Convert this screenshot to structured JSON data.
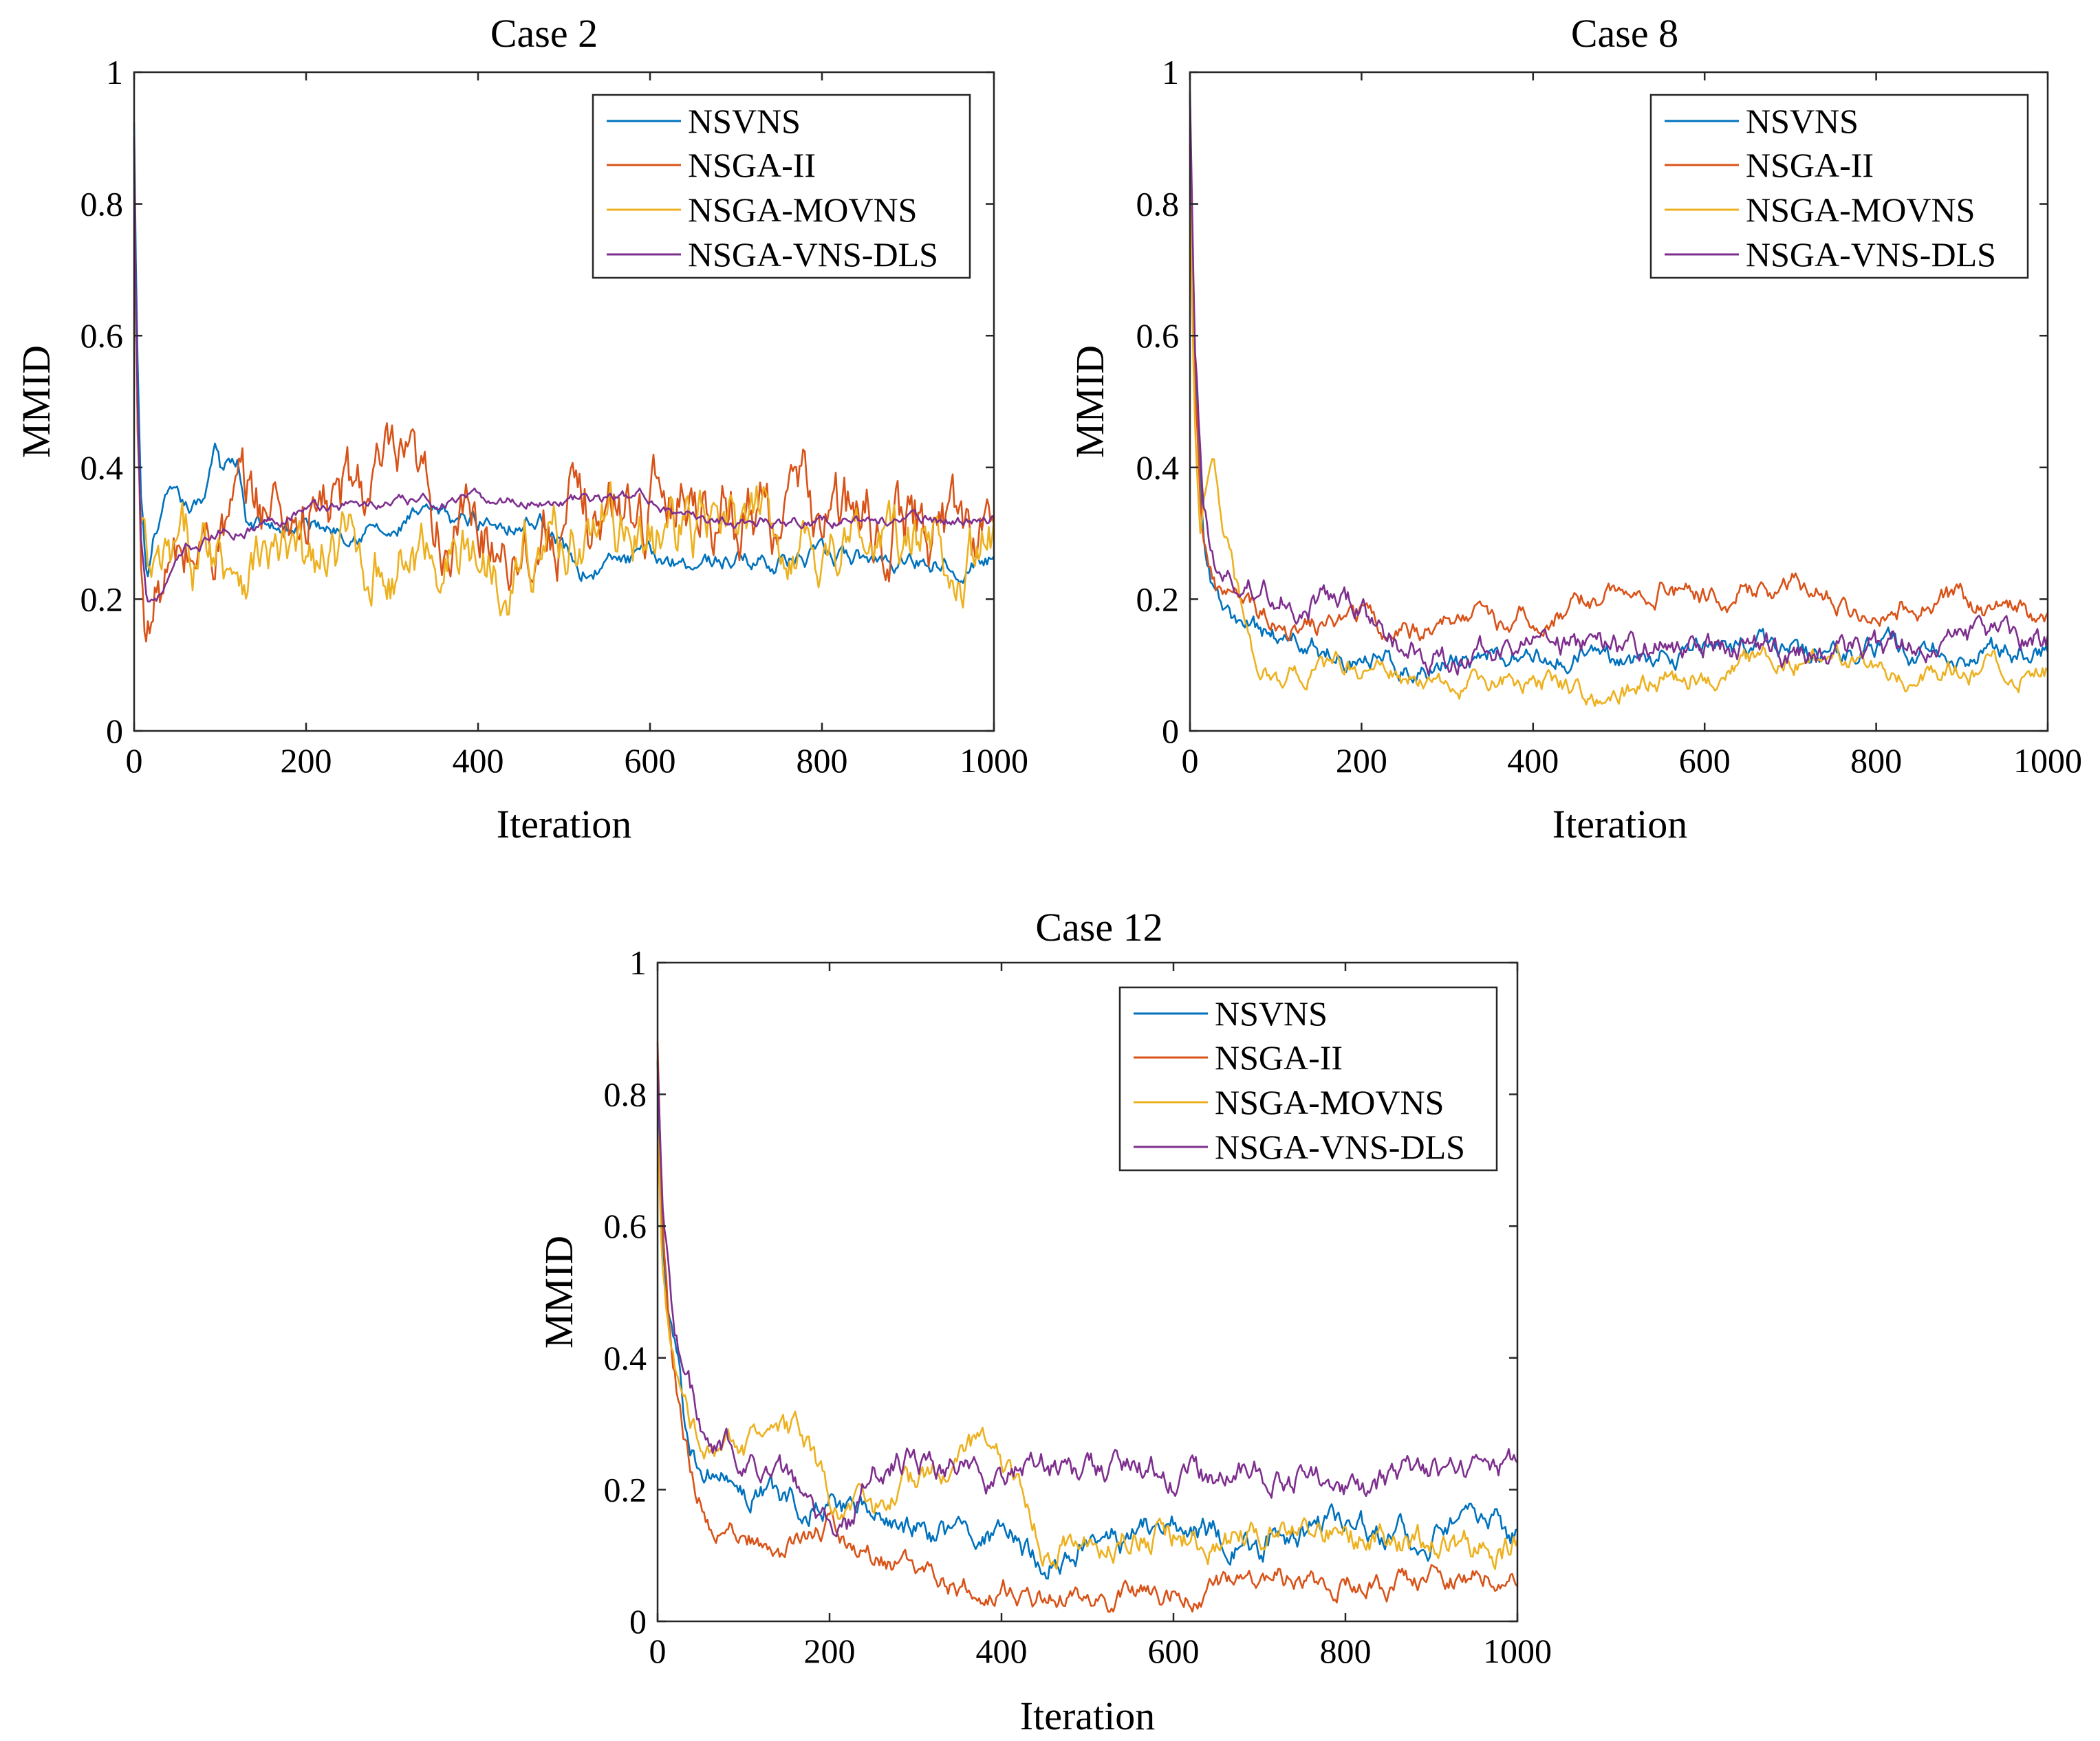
{
  "colors": {
    "NSVNS": "#0072BD",
    "NSGA-II": "#D95319",
    "NSGA-MOVNS": "#EDB120",
    "NSGA-VNS-DLS": "#7E2F8E"
  },
  "chart_data": [
    {
      "type": "line",
      "title": "Case 2",
      "xlabel": "Iteration",
      "ylabel": "MMID",
      "xlim": [
        0,
        1000
      ],
      "ylim": [
        0,
        1
      ],
      "xticks": [
        "0",
        "200",
        "400",
        "600",
        "800",
        "1000"
      ],
      "yticks": [
        "0",
        "0.2",
        "0.4",
        "0.6",
        "0.8",
        "1"
      ],
      "legend": [
        "NSVNS",
        "NSGA-II",
        "NSGA-MOVNS",
        "NSGA-VNS-DLS"
      ],
      "legend_position": "top-right",
      "series": [
        {
          "name": "NSVNS",
          "x": [
            0,
            3,
            8,
            15,
            25,
            40,
            60,
            80,
            95,
            100,
            120,
            130,
            200,
            280,
            300,
            320,
            400,
            480,
            500,
            520,
            540,
            560,
            600,
            700,
            800,
            900,
            1000
          ],
          "values": [
            0.92,
            0.6,
            0.35,
            0.22,
            0.3,
            0.35,
            0.33,
            0.34,
            0.45,
            0.41,
            0.41,
            0.31,
            0.31,
            0.31,
            0.29,
            0.32,
            0.32,
            0.32,
            0.28,
            0.24,
            0.25,
            0.255,
            0.26,
            0.26,
            0.26,
            0.26,
            0.26
          ],
          "noise": 0.01
        },
        {
          "name": "NSGA-II",
          "x": [
            0,
            3,
            8,
            15,
            30,
            60,
            100,
            150,
            200,
            250,
            280,
            300,
            330,
            360,
            400,
            450,
            500,
            550,
            600,
            640,
            660,
            700,
            750,
            800,
            850,
            900,
            1000
          ],
          "values": [
            0.88,
            0.5,
            0.25,
            0.16,
            0.22,
            0.25,
            0.31,
            0.34,
            0.33,
            0.35,
            0.37,
            0.38,
            0.34,
            0.31,
            0.3,
            0.3,
            0.31,
            0.33,
            0.35,
            0.37,
            0.36,
            0.34,
            0.34,
            0.33,
            0.31,
            0.31,
            0.31
          ],
          "noise": 0.04
        },
        {
          "name": "NSGA-MOVNS",
          "x": [
            0,
            3,
            8,
            20,
            40,
            60,
            100,
            150,
            200,
            250,
            300,
            330,
            360,
            400,
            450,
            500,
            550,
            600,
            650,
            700,
            750,
            800,
            850,
            900,
            1000
          ],
          "values": [
            0.85,
            0.5,
            0.28,
            0.2,
            0.23,
            0.26,
            0.28,
            0.27,
            0.24,
            0.27,
            0.25,
            0.26,
            0.28,
            0.26,
            0.27,
            0.3,
            0.31,
            0.3,
            0.31,
            0.29,
            0.3,
            0.29,
            0.29,
            0.28,
            0.28
          ],
          "noise": 0.035
        },
        {
          "name": "NSGA-VNS-DLS",
          "x": [
            0,
            3,
            8,
            15,
            30,
            60,
            100,
            140,
            180,
            200,
            300,
            400,
            500,
            600,
            620,
            630,
            700,
            800,
            850,
            900,
            1000
          ],
          "values": [
            0.9,
            0.55,
            0.3,
            0.2,
            0.21,
            0.27,
            0.3,
            0.31,
            0.33,
            0.34,
            0.345,
            0.35,
            0.35,
            0.355,
            0.34,
            0.32,
            0.32,
            0.32,
            0.32,
            0.32,
            0.32
          ],
          "noise": 0.006
        }
      ]
    },
    {
      "type": "line",
      "title": "Case 8",
      "xlabel": "Iteration",
      "ylabel": "MMID",
      "xlim": [
        0,
        1000
      ],
      "ylim": [
        0,
        1
      ],
      "xticks": [
        "0",
        "200",
        "400",
        "600",
        "800",
        "1000"
      ],
      "yticks": [
        "0",
        "0.2",
        "0.4",
        "0.6",
        "0.8",
        "1"
      ],
      "legend": [
        "NSVNS",
        "NSGA-II",
        "NSGA-MOVNS",
        "NSGA-VNS-DLS"
      ],
      "legend_position": "top-right",
      "series": [
        {
          "name": "NSVNS",
          "x": [
            0,
            5,
            15,
            30,
            50,
            80,
            120,
            160,
            200,
            250,
            300,
            350,
            400,
            450,
            500,
            550,
            600,
            650,
            700,
            750,
            800,
            850,
            900,
            950,
            1000
          ],
          "values": [
            0.97,
            0.6,
            0.3,
            0.2,
            0.16,
            0.15,
            0.14,
            0.12,
            0.11,
            0.1,
            0.1,
            0.11,
            0.11,
            0.115,
            0.11,
            0.12,
            0.12,
            0.125,
            0.12,
            0.12,
            0.13,
            0.12,
            0.12,
            0.12,
            0.125
          ],
          "noise": 0.012
        },
        {
          "name": "NSGA-II",
          "x": [
            0,
            5,
            15,
            30,
            50,
            80,
            120,
            160,
            200,
            250,
            300,
            340,
            360,
            400,
            450,
            500,
            550,
            600,
            650,
            700,
            750,
            800,
            850,
            900,
            950,
            1000
          ],
          "values": [
            0.9,
            0.55,
            0.3,
            0.22,
            0.2,
            0.18,
            0.16,
            0.16,
            0.17,
            0.15,
            0.16,
            0.2,
            0.17,
            0.17,
            0.19,
            0.21,
            0.22,
            0.2,
            0.21,
            0.23,
            0.2,
            0.19,
            0.19,
            0.2,
            0.18,
            0.17
          ],
          "noise": 0.012
        },
        {
          "name": "NSGA-MOVNS",
          "x": [
            0,
            5,
            12,
            20,
            28,
            40,
            60,
            80,
            100,
            150,
            200,
            250,
            300,
            350,
            400,
            450,
            500,
            550,
            600,
            650,
            700,
            750,
            800,
            850,
            900,
            950,
            1000
          ],
          "values": [
            0.85,
            0.5,
            0.3,
            0.38,
            0.42,
            0.3,
            0.18,
            0.1,
            0.08,
            0.09,
            0.1,
            0.08,
            0.06,
            0.07,
            0.08,
            0.07,
            0.05,
            0.08,
            0.09,
            0.1,
            0.11,
            0.1,
            0.09,
            0.09,
            0.1,
            0.09,
            0.09
          ],
          "noise": 0.012
        },
        {
          "name": "NSGA-VNS-DLS",
          "x": [
            0,
            5,
            15,
            30,
            50,
            80,
            120,
            160,
            200,
            250,
            300,
            350,
            400,
            450,
            500,
            550,
            600,
            650,
            700,
            750,
            800,
            850,
            900,
            950,
            1000
          ],
          "values": [
            0.98,
            0.6,
            0.35,
            0.25,
            0.22,
            0.22,
            0.2,
            0.2,
            0.18,
            0.12,
            0.11,
            0.12,
            0.13,
            0.13,
            0.12,
            0.13,
            0.13,
            0.13,
            0.12,
            0.12,
            0.12,
            0.13,
            0.14,
            0.14,
            0.14
          ],
          "noise": 0.014
        }
      ]
    },
    {
      "type": "line",
      "title": "Case 12",
      "xlabel": "Iteration",
      "ylabel": "MMID",
      "xlim": [
        0,
        1000
      ],
      "ylim": [
        0,
        1
      ],
      "xticks": [
        "0",
        "200",
        "400",
        "600",
        "800",
        "1000"
      ],
      "yticks": [
        "0",
        "0.2",
        "0.4",
        "0.6",
        "0.8",
        "1"
      ],
      "legend": [
        "NSVNS",
        "NSGA-II",
        "NSGA-MOVNS",
        "NSGA-VNS-DLS"
      ],
      "legend_position": "top-right",
      "series": [
        {
          "name": "NSVNS",
          "x": [
            0,
            5,
            15,
            30,
            50,
            70,
            100,
            150,
            200,
            250,
            300,
            350,
            400,
            450,
            500,
            550,
            600,
            650,
            700,
            750,
            800,
            850,
            900,
            950,
            1000
          ],
          "values": [
            0.85,
            0.6,
            0.45,
            0.32,
            0.24,
            0.22,
            0.2,
            0.19,
            0.18,
            0.16,
            0.14,
            0.12,
            0.12,
            0.1,
            0.12,
            0.13,
            0.14,
            0.13,
            0.12,
            0.14,
            0.15,
            0.13,
            0.13,
            0.14,
            0.13
          ],
          "noise": 0.015
        },
        {
          "name": "NSGA-II",
          "x": [
            0,
            5,
            15,
            30,
            45,
            60,
            80,
            100,
            140,
            180,
            200,
            250,
            300,
            350,
            400,
            450,
            500,
            550,
            600,
            650,
            700,
            750,
            800,
            850,
            900,
            950,
            1000
          ],
          "values": [
            0.88,
            0.6,
            0.42,
            0.28,
            0.2,
            0.15,
            0.13,
            0.14,
            0.1,
            0.12,
            0.15,
            0.1,
            0.07,
            0.05,
            0.05,
            0.04,
            0.03,
            0.04,
            0.04,
            0.05,
            0.07,
            0.06,
            0.06,
            0.05,
            0.07,
            0.07,
            0.08
          ],
          "noise": 0.012
        },
        {
          "name": "NSGA-MOVNS",
          "x": [
            0,
            5,
            15,
            30,
            50,
            70,
            100,
            130,
            160,
            200,
            250,
            300,
            350,
            380,
            420,
            450,
            500,
            550,
            600,
            650,
            700,
            750,
            800,
            850,
            900,
            950,
            1000
          ],
          "values": [
            0.75,
            0.55,
            0.4,
            0.35,
            0.28,
            0.27,
            0.26,
            0.27,
            0.28,
            0.2,
            0.15,
            0.2,
            0.26,
            0.27,
            0.22,
            0.12,
            0.12,
            0.13,
            0.13,
            0.12,
            0.14,
            0.15,
            0.14,
            0.12,
            0.12,
            0.11,
            0.11
          ],
          "noise": 0.015
        },
        {
          "name": "NSGA-VNS-DLS",
          "x": [
            0,
            5,
            15,
            30,
            50,
            70,
            100,
            150,
            200,
            220,
            250,
            280,
            300,
            350,
            400,
            450,
            500,
            550,
            600,
            650,
            700,
            750,
            800,
            850,
            900,
            950,
            1000
          ],
          "values": [
            0.85,
            0.65,
            0.5,
            0.38,
            0.3,
            0.27,
            0.25,
            0.22,
            0.15,
            0.15,
            0.22,
            0.25,
            0.24,
            0.23,
            0.21,
            0.23,
            0.22,
            0.24,
            0.22,
            0.21,
            0.22,
            0.22,
            0.19,
            0.22,
            0.22,
            0.23,
            0.24
          ],
          "noise": 0.015
        }
      ]
    }
  ]
}
